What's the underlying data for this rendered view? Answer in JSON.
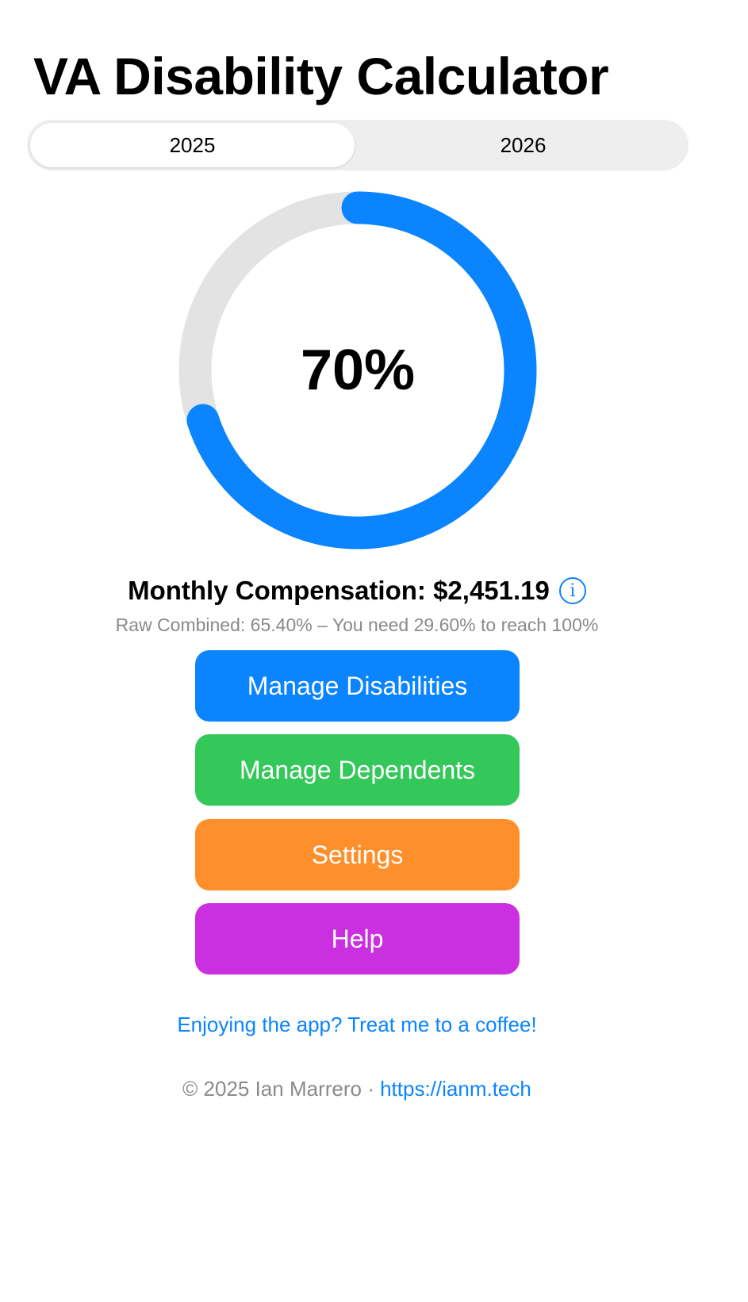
{
  "header": {
    "title": "VA Disability Calculator"
  },
  "year_selector": {
    "options": [
      "2025",
      "2026"
    ],
    "selected": "2025"
  },
  "rating": {
    "display": "70%",
    "fraction": 0.7,
    "colors": {
      "progress": "#0a84ff",
      "track": "#e3e3e3"
    }
  },
  "compensation": {
    "label": "Monthly Compensation: $2,451.19",
    "info_icon": "info-circle-icon",
    "raw_line": "Raw Combined: 65.40% – You need 29.60% to reach 100%"
  },
  "buttons": [
    {
      "label": "Manage Disabilities",
      "color": "#0a84ff"
    },
    {
      "label": "Manage Dependents",
      "color": "#34c759"
    },
    {
      "label": "Settings",
      "color": "#ff8f2a"
    },
    {
      "label": "Help",
      "color": "#cb30e0"
    }
  ],
  "coffee_link": "Enjoying the app? Treat me to a coffee!",
  "footer": {
    "copyright": "© 2025 Ian Marrero · ",
    "link": "https://ianm.tech"
  }
}
